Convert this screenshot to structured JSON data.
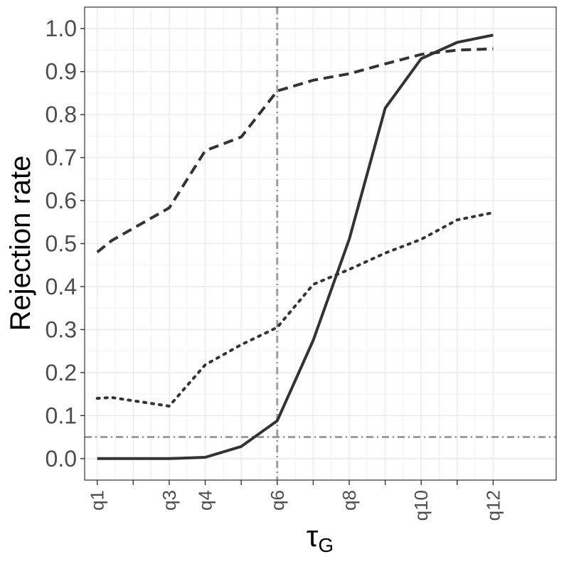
{
  "chart_data": {
    "type": "line",
    "title": "",
    "xlabel_main": "τ",
    "xlabel_sub": "G",
    "ylabel": "Rejection rate",
    "x_tick_labels": [
      "q1",
      "q3",
      "q4",
      "q6",
      "q8",
      "q10",
      "q12"
    ],
    "x_tick_positions": [
      1,
      3,
      4,
      6,
      8,
      10,
      12
    ],
    "xlim": [
      0.65,
      13.75
    ],
    "ylim": [
      -0.05,
      1.05
    ],
    "y_ticks": [
      "0.0",
      "0.1",
      "0.2",
      "0.3",
      "0.4",
      "0.5",
      "0.6",
      "0.7",
      "0.8",
      "0.9",
      "1.0"
    ],
    "grid": true,
    "reference_lines": {
      "vertical_x": 6,
      "horizontal_y": 0.05,
      "style": "dot-dash",
      "color": "#9e9e9e"
    },
    "series": [
      {
        "style": "solid",
        "color": "#333333",
        "x": [
          1,
          2,
          3,
          4,
          5,
          6,
          7,
          8,
          9,
          10,
          11,
          12
        ],
        "values": [
          0.0,
          0.0,
          0.0,
          0.003,
          0.028,
          0.088,
          0.275,
          0.51,
          0.815,
          0.93,
          0.968,
          0.985
        ]
      },
      {
        "style": "dashed",
        "color": "#333333",
        "x": [
          1,
          1.4,
          3,
          4,
          5,
          6,
          7,
          8,
          9,
          10,
          11,
          12
        ],
        "values": [
          0.48,
          0.507,
          0.583,
          0.716,
          0.748,
          0.855,
          0.88,
          0.895,
          0.918,
          0.94,
          0.95,
          0.953
        ]
      },
      {
        "style": "dotted",
        "color": "#333333",
        "x": [
          1,
          1.4,
          3,
          4,
          5,
          6,
          7,
          8,
          9,
          10,
          11,
          12
        ],
        "values": [
          0.14,
          0.142,
          0.122,
          0.218,
          0.265,
          0.305,
          0.405,
          0.44,
          0.478,
          0.51,
          0.555,
          0.572
        ]
      }
    ]
  }
}
